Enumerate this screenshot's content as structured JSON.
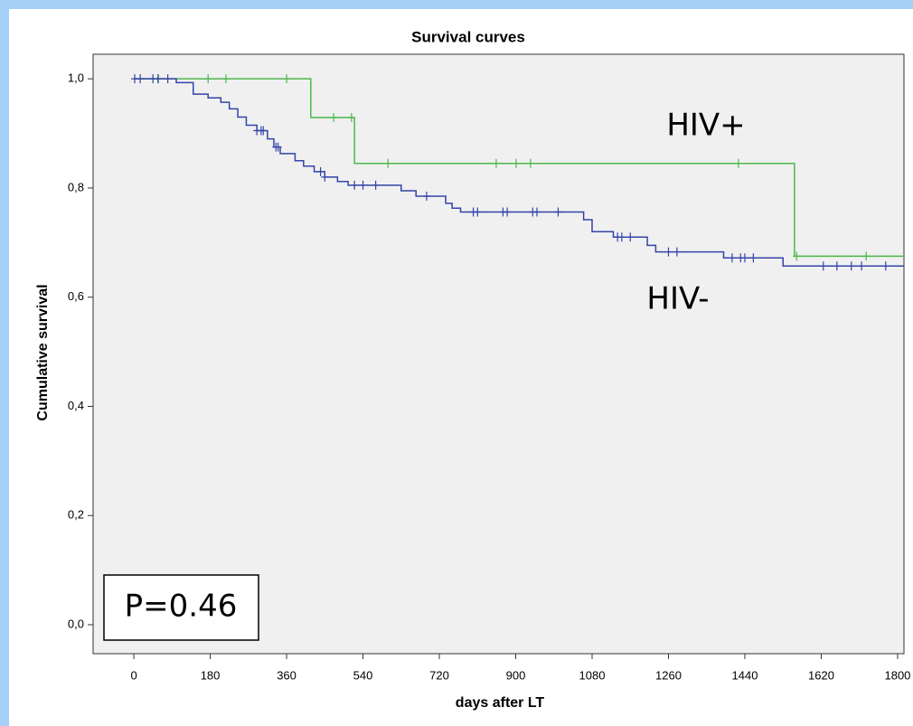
{
  "chart_data": {
    "type": "step",
    "title": "Survival curves",
    "x_label": "days after LT",
    "y_label": "Cumulative survival",
    "xlim": [
      -96,
      1815
    ],
    "ylim": [
      -0.053,
      1.045
    ],
    "xticks": [
      0,
      180,
      360,
      540,
      720,
      900,
      1080,
      1260,
      1440,
      1620,
      1800
    ],
    "yticks": [
      {
        "value": 0,
        "label": "0,0"
      },
      {
        "value": 0.2,
        "label": "0,2"
      },
      {
        "value": 0.4,
        "label": "0,4"
      },
      {
        "value": 0.6,
        "label": "0,6"
      },
      {
        "value": 0.8,
        "label": "0,8"
      },
      {
        "value": 1,
        "label": "1,0"
      }
    ],
    "series": [
      {
        "name": "HIV+",
        "color": "#4cb84a",
        "x": [
          0,
          417,
          520,
          1557
        ],
        "values": [
          1.0,
          0.929,
          0.845,
          0.675
        ],
        "censor_x": [
          58,
          175,
          217,
          360,
          471,
          513,
          599,
          854,
          901,
          935,
          1425,
          1562,
          1726
        ]
      },
      {
        "name": "HIV-",
        "color": "#3444a8",
        "x": [
          0,
          100,
          140,
          175,
          205,
          225,
          245,
          265,
          290,
          315,
          330,
          345,
          380,
          400,
          425,
          450,
          480,
          505,
          630,
          665,
          735,
          750,
          770,
          1060,
          1080,
          1130,
          1210,
          1230,
          1390,
          1530
        ],
        "values": [
          1.0,
          0.993,
          0.972,
          0.965,
          0.957,
          0.945,
          0.93,
          0.915,
          0.905,
          0.89,
          0.875,
          0.863,
          0.85,
          0.84,
          0.83,
          0.82,
          0.812,
          0.805,
          0.795,
          0.785,
          0.772,
          0.763,
          0.756,
          0.742,
          0.72,
          0.71,
          0.695,
          0.683,
          0.672,
          0.657
        ],
        "censor_x": [
          2,
          15,
          45,
          57,
          80,
          290,
          300,
          305,
          335,
          340,
          440,
          450,
          520,
          540,
          570,
          690,
          800,
          810,
          870,
          880,
          940,
          950,
          1000,
          1140,
          1150,
          1170,
          1260,
          1280,
          1410,
          1430,
          1440,
          1460,
          1625,
          1657,
          1691,
          1715,
          1772
        ]
      }
    ],
    "annotations": [
      "HIV+",
      "HIV-",
      "P=0.46"
    ]
  }
}
